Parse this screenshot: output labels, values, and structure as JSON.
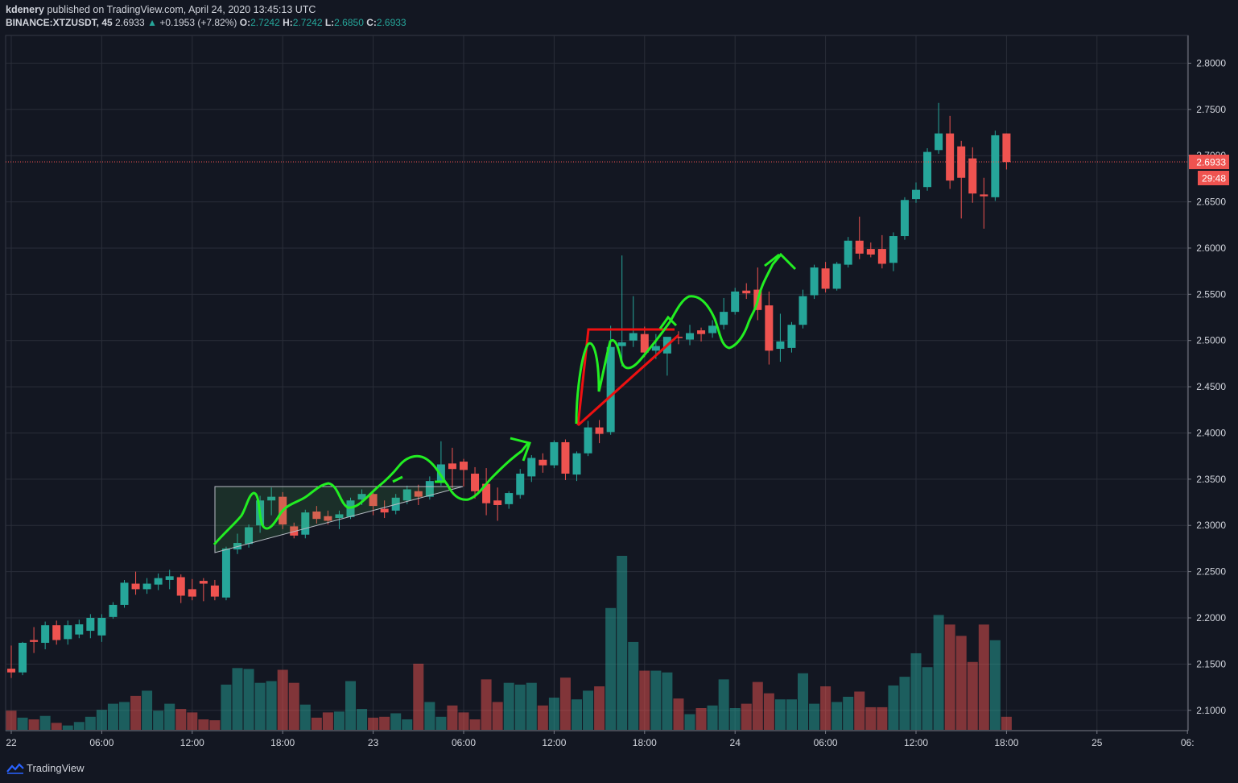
{
  "header": {
    "author": "kdenery",
    "published": "published on TradingView.com, April 24, 2020 13:45:13 UTC",
    "symbol": "BINANCE:XTZUSDT, 45",
    "last": "2.6933",
    "change_arrow": "▲",
    "change": "+0.1953 (+7.82%)",
    "o_label": "O:",
    "o": "2.7242",
    "h_label": "H:",
    "h": "2.7242",
    "l_label": "L:",
    "l": "2.6850",
    "c_label": "C:",
    "c": "2.6933"
  },
  "price_tag": {
    "price": "2.6933",
    "countdown": "29:48"
  },
  "footer": {
    "brand": "TradingView",
    "icon": "tradingview-logo-icon"
  },
  "colors": {
    "bg": "#131722",
    "up": "#26a69a",
    "down": "#ef5350",
    "grid": "#2a2e39",
    "annotation_green": "#22ee22",
    "annotation_red": "#ee1111"
  },
  "chart_data": {
    "type": "candlestick",
    "symbol": "BINANCE:XTZUSDT",
    "interval": "45",
    "ylim": [
      2.078,
      2.83
    ],
    "y_ticks": [
      "2.1000",
      "2.1500",
      "2.2000",
      "2.2500",
      "2.3000",
      "2.3500",
      "2.4000",
      "2.4500",
      "2.5000",
      "2.5500",
      "2.6000",
      "2.6500",
      "2.7000",
      "2.7500",
      "2.8000"
    ],
    "x_ticks": [
      "22",
      "06:00",
      "12:00",
      "18:00",
      "23",
      "06:00",
      "12:00",
      "18:00",
      "24",
      "06:00",
      "12:00",
      "18:00",
      "25",
      "06:"
    ],
    "grid": true,
    "volume_max": 1.0,
    "candles": [
      {
        "o": 2.145,
        "h": 2.17,
        "c": 2.141,
        "l": 2.135,
        "v": 0.22
      },
      {
        "o": 2.141,
        "h": 2.174,
        "c": 2.173,
        "l": 2.138,
        "v": 0.14
      },
      {
        "o": 2.176,
        "h": 2.19,
        "c": 2.174,
        "l": 2.162,
        "v": 0.12
      },
      {
        "o": 2.173,
        "h": 2.196,
        "c": 2.192,
        "l": 2.166,
        "v": 0.16
      },
      {
        "o": 2.192,
        "h": 2.197,
        "c": 2.176,
        "l": 2.171,
        "v": 0.08
      },
      {
        "o": 2.177,
        "h": 2.197,
        "c": 2.192,
        "l": 2.171,
        "v": 0.05
      },
      {
        "o": 2.182,
        "h": 2.198,
        "c": 2.193,
        "l": 2.178,
        "v": 0.09
      },
      {
        "o": 2.186,
        "h": 2.204,
        "c": 2.2,
        "l": 2.178,
        "v": 0.15
      },
      {
        "o": 2.181,
        "h": 2.204,
        "c": 2.2,
        "l": 2.174,
        "v": 0.23
      },
      {
        "o": 2.201,
        "h": 2.217,
        "c": 2.214,
        "l": 2.199,
        "v": 0.3
      },
      {
        "o": 2.214,
        "h": 2.241,
        "c": 2.238,
        "l": 2.211,
        "v": 0.32
      },
      {
        "o": 2.237,
        "h": 2.25,
        "c": 2.231,
        "l": 2.225,
        "v": 0.39
      },
      {
        "o": 2.231,
        "h": 2.243,
        "c": 2.237,
        "l": 2.226,
        "v": 0.45
      },
      {
        "o": 2.236,
        "h": 2.248,
        "c": 2.243,
        "l": 2.23,
        "v": 0.22
      },
      {
        "o": 2.241,
        "h": 2.252,
        "c": 2.245,
        "l": 2.231,
        "v": 0.3
      },
      {
        "o": 2.244,
        "h": 2.247,
        "c": 2.224,
        "l": 2.216,
        "v": 0.24
      },
      {
        "o": 2.231,
        "h": 2.242,
        "c": 2.223,
        "l": 2.219,
        "v": 0.2
      },
      {
        "o": 2.24,
        "h": 2.243,
        "c": 2.237,
        "l": 2.218,
        "v": 0.12
      },
      {
        "o": 2.235,
        "h": 2.241,
        "c": 2.223,
        "l": 2.219,
        "v": 0.11
      },
      {
        "o": 2.222,
        "h": 2.277,
        "c": 2.275,
        "l": 2.219,
        "v": 0.52
      },
      {
        "o": 2.274,
        "h": 2.291,
        "c": 2.281,
        "l": 2.269,
        "v": 0.71
      },
      {
        "o": 2.28,
        "h": 2.301,
        "c": 2.298,
        "l": 2.276,
        "v": 0.7
      },
      {
        "o": 2.3,
        "h": 2.332,
        "c": 2.327,
        "l": 2.292,
        "v": 0.54
      },
      {
        "o": 2.327,
        "h": 2.341,
        "c": 2.331,
        "l": 2.311,
        "v": 0.56
      },
      {
        "o": 2.331,
        "h": 2.336,
        "c": 2.301,
        "l": 2.296,
        "v": 0.69
      },
      {
        "o": 2.299,
        "h": 2.303,
        "c": 2.289,
        "l": 2.286,
        "v": 0.54
      },
      {
        "o": 2.29,
        "h": 2.317,
        "c": 2.314,
        "l": 2.286,
        "v": 0.29
      },
      {
        "o": 2.315,
        "h": 2.321,
        "c": 2.307,
        "l": 2.302,
        "v": 0.14
      },
      {
        "o": 2.31,
        "h": 2.316,
        "c": 2.305,
        "l": 2.301,
        "v": 0.2
      },
      {
        "o": 2.308,
        "h": 2.316,
        "c": 2.312,
        "l": 2.296,
        "v": 0.21
      },
      {
        "o": 2.309,
        "h": 2.33,
        "c": 2.327,
        "l": 2.307,
        "v": 0.56
      },
      {
        "o": 2.328,
        "h": 2.339,
        "c": 2.334,
        "l": 2.322,
        "v": 0.24
      },
      {
        "o": 2.334,
        "h": 2.337,
        "c": 2.321,
        "l": 2.311,
        "v": 0.14
      },
      {
        "o": 2.318,
        "h": 2.327,
        "c": 2.314,
        "l": 2.308,
        "v": 0.15
      },
      {
        "o": 2.316,
        "h": 2.334,
        "c": 2.33,
        "l": 2.312,
        "v": 0.19
      },
      {
        "o": 2.327,
        "h": 2.343,
        "c": 2.339,
        "l": 2.323,
        "v": 0.12
      },
      {
        "o": 2.337,
        "h": 2.344,
        "c": 2.331,
        "l": 2.322,
        "v": 0.76
      },
      {
        "o": 2.331,
        "h": 2.353,
        "c": 2.348,
        "l": 2.328,
        "v": 0.32
      },
      {
        "o": 2.348,
        "h": 2.391,
        "c": 2.366,
        "l": 2.343,
        "v": 0.15
      },
      {
        "o": 2.367,
        "h": 2.384,
        "c": 2.361,
        "l": 2.34,
        "v": 0.28
      },
      {
        "o": 2.369,
        "h": 2.372,
        "c": 2.36,
        "l": 2.342,
        "v": 0.2
      },
      {
        "o": 2.356,
        "h": 2.363,
        "c": 2.337,
        "l": 2.329,
        "v": 0.12
      },
      {
        "o": 2.345,
        "h": 2.362,
        "c": 2.324,
        "l": 2.311,
        "v": 0.58
      },
      {
        "o": 2.327,
        "h": 2.341,
        "c": 2.322,
        "l": 2.305,
        "v": 0.32
      },
      {
        "o": 2.323,
        "h": 2.337,
        "c": 2.335,
        "l": 2.318,
        "v": 0.54
      },
      {
        "o": 2.333,
        "h": 2.361,
        "c": 2.356,
        "l": 2.329,
        "v": 0.52
      },
      {
        "o": 2.353,
        "h": 2.376,
        "c": 2.373,
        "l": 2.347,
        "v": 0.54
      },
      {
        "o": 2.371,
        "h": 2.378,
        "c": 2.365,
        "l": 2.357,
        "v": 0.28
      },
      {
        "o": 2.365,
        "h": 2.392,
        "c": 2.39,
        "l": 2.362,
        "v": 0.37
      },
      {
        "o": 2.39,
        "h": 2.393,
        "c": 2.356,
        "l": 2.349,
        "v": 0.6
      },
      {
        "o": 2.355,
        "h": 2.38,
        "c": 2.378,
        "l": 2.348,
        "v": 0.35
      },
      {
        "o": 2.378,
        "h": 2.413,
        "c": 2.406,
        "l": 2.375,
        "v": 0.45
      },
      {
        "o": 2.406,
        "h": 2.414,
        "c": 2.399,
        "l": 2.389,
        "v": 0.5
      },
      {
        "o": 2.401,
        "h": 2.516,
        "c": 2.493,
        "l": 2.398,
        "v": 1.4
      },
      {
        "o": 2.494,
        "h": 2.592,
        "c": 2.498,
        "l": 2.472,
        "v": 2.0
      },
      {
        "o": 2.5,
        "h": 2.548,
        "c": 2.508,
        "l": 2.493,
        "v": 1.01
      },
      {
        "o": 2.507,
        "h": 2.515,
        "c": 2.487,
        "l": 2.482,
        "v": 0.68
      },
      {
        "o": 2.489,
        "h": 2.507,
        "c": 2.494,
        "l": 2.48,
        "v": 0.68
      },
      {
        "o": 2.486,
        "h": 2.503,
        "c": 2.504,
        "l": 2.462,
        "v": 0.66
      },
      {
        "o": 2.504,
        "h": 2.51,
        "c": 2.503,
        "l": 2.496,
        "v": 0.36
      },
      {
        "o": 2.501,
        "h": 2.517,
        "c": 2.508,
        "l": 2.495,
        "v": 0.18
      },
      {
        "o": 2.511,
        "h": 2.514,
        "c": 2.507,
        "l": 2.499,
        "v": 0.25
      },
      {
        "o": 2.508,
        "h": 2.522,
        "c": 2.516,
        "l": 2.503,
        "v": 0.28
      },
      {
        "o": 2.517,
        "h": 2.546,
        "c": 2.531,
        "l": 2.512,
        "v": 0.58
      },
      {
        "o": 2.531,
        "h": 2.557,
        "c": 2.553,
        "l": 2.528,
        "v": 0.25
      },
      {
        "o": 2.554,
        "h": 2.562,
        "c": 2.551,
        "l": 2.545,
        "v": 0.3
      },
      {
        "o": 2.555,
        "h": 2.579,
        "c": 2.533,
        "l": 2.522,
        "v": 0.55
      },
      {
        "o": 2.538,
        "h": 2.553,
        "c": 2.489,
        "l": 2.474,
        "v": 0.42
      },
      {
        "o": 2.491,
        "h": 2.529,
        "c": 2.499,
        "l": 2.477,
        "v": 0.35
      },
      {
        "o": 2.492,
        "h": 2.52,
        "c": 2.517,
        "l": 2.487,
        "v": 0.35
      },
      {
        "o": 2.517,
        "h": 2.555,
        "c": 2.548,
        "l": 2.513,
        "v": 0.65
      },
      {
        "o": 2.549,
        "h": 2.582,
        "c": 2.579,
        "l": 2.545,
        "v": 0.3
      },
      {
        "o": 2.578,
        "h": 2.585,
        "c": 2.556,
        "l": 2.552,
        "v": 0.5
      },
      {
        "o": 2.556,
        "h": 2.585,
        "c": 2.583,
        "l": 2.554,
        "v": 0.32
      },
      {
        "o": 2.582,
        "h": 2.612,
        "c": 2.608,
        "l": 2.579,
        "v": 0.38
      },
      {
        "o": 2.608,
        "h": 2.634,
        "c": 2.594,
        "l": 2.588,
        "v": 0.44
      },
      {
        "o": 2.599,
        "h": 2.606,
        "c": 2.593,
        "l": 2.59,
        "v": 0.26
      },
      {
        "o": 2.599,
        "h": 2.614,
        "c": 2.583,
        "l": 2.578,
        "v": 0.26
      },
      {
        "o": 2.584,
        "h": 2.617,
        "c": 2.613,
        "l": 2.575,
        "v": 0.51
      },
      {
        "o": 2.613,
        "h": 2.655,
        "c": 2.652,
        "l": 2.609,
        "v": 0.61
      },
      {
        "o": 2.653,
        "h": 2.671,
        "c": 2.663,
        "l": 2.649,
        "v": 0.88
      },
      {
        "o": 2.666,
        "h": 2.708,
        "c": 2.704,
        "l": 2.662,
        "v": 0.72
      },
      {
        "o": 2.706,
        "h": 2.757,
        "c": 2.724,
        "l": 2.702,
        "v": 1.32
      },
      {
        "o": 2.724,
        "h": 2.743,
        "c": 2.673,
        "l": 2.664,
        "v": 1.21
      },
      {
        "o": 2.71,
        "h": 2.716,
        "c": 2.676,
        "l": 2.632,
        "v": 1.08
      },
      {
        "o": 2.697,
        "h": 2.709,
        "c": 2.659,
        "l": 2.649,
        "v": 0.78
      },
      {
        "o": 2.658,
        "h": 2.676,
        "c": 2.656,
        "l": 2.621,
        "v": 1.21
      },
      {
        "o": 2.655,
        "h": 2.727,
        "c": 2.722,
        "l": 2.651,
        "v": 1.03
      },
      {
        "o": 2.724,
        "h": 2.724,
        "c": 2.693,
        "l": 2.685,
        "v": 0.15
      }
    ]
  }
}
